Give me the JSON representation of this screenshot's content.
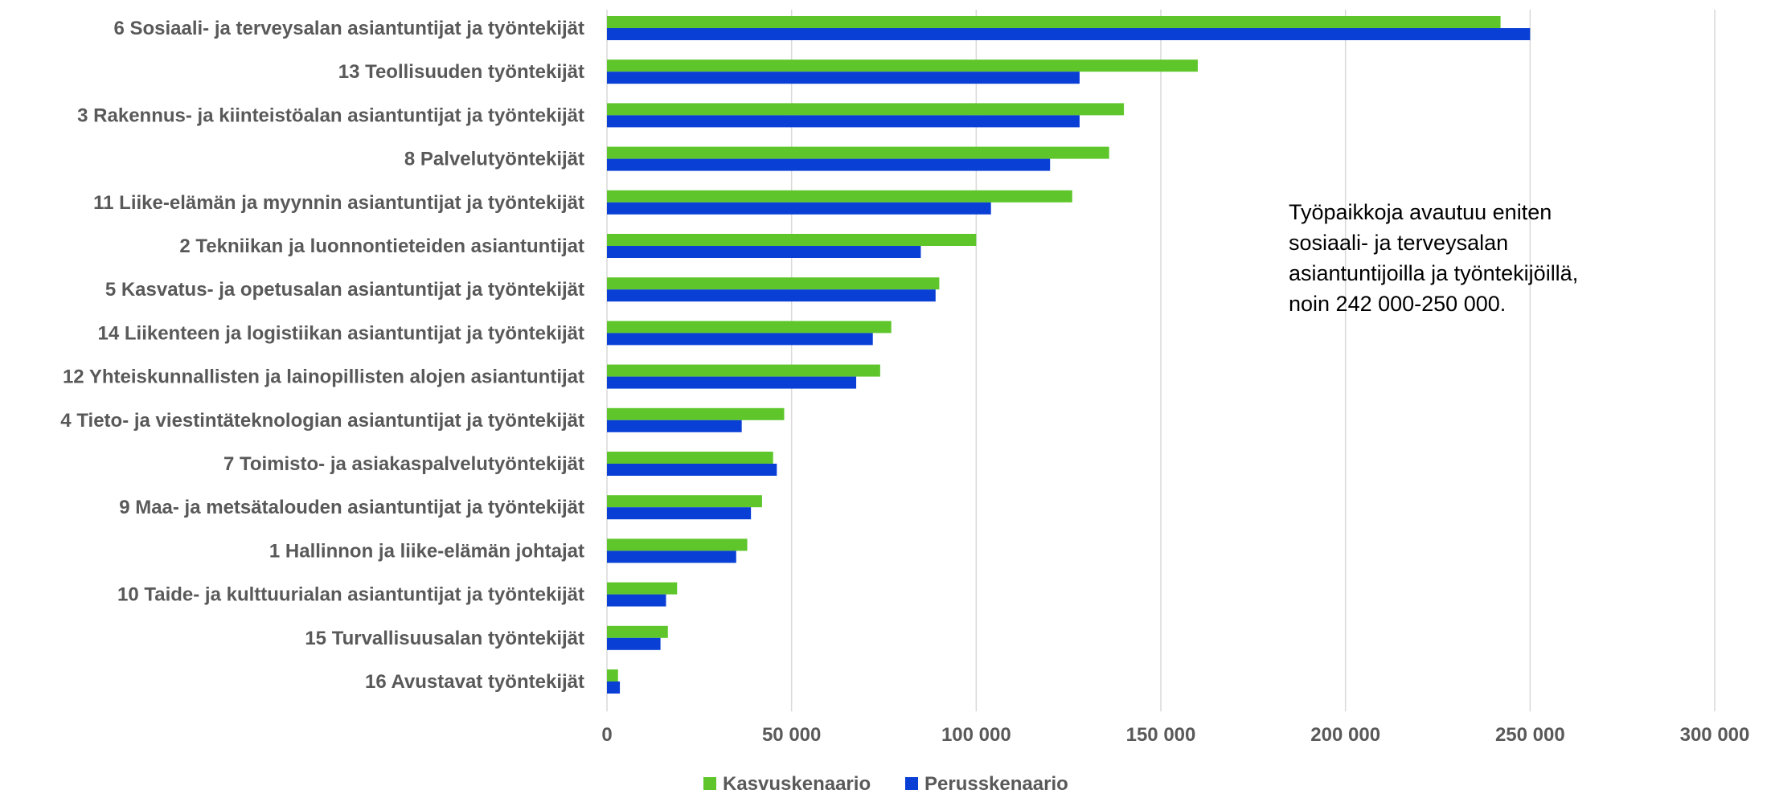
{
  "chart_data": {
    "type": "bar",
    "orientation": "horizontal",
    "title": "",
    "xlabel": "",
    "ylabel": "",
    "categories": [
      "6 Sosiaali- ja terveysalan asiantuntijat ja työntekijät",
      "13 Teollisuuden työntekijät",
      "3 Rakennus- ja kiinteistöalan asiantuntijat ja työntekijät",
      "8 Palvelutyöntekijät",
      "11 Liike-elämän ja myynnin asiantuntijat ja työntekijät",
      "2 Tekniikan ja luonnontieteiden asiantuntijat",
      "5 Kasvatus- ja opetusalan asiantuntijat ja työntekijät",
      "14 Liikenteen ja logistiikan asiantuntijat ja työntekijät",
      "12 Yhteiskunnallisten ja lainopillisten alojen asiantuntijat",
      "4 Tieto- ja viestintäteknologian asiantuntijat ja työntekijät",
      "7 Toimisto- ja asiakaspalvelutyöntekijät",
      "9 Maa- ja metsätalouden asiantuntijat ja työntekijät",
      "1 Hallinnon ja liike-elämän johtajat",
      "10 Taide- ja kulttuurialan asiantuntijat ja työntekijät",
      "15 Turvallisuusalan työntekijät",
      "16 Avustavat työntekijät"
    ],
    "series": [
      {
        "name": "Kasvuskenaario",
        "color": "#5ec62a",
        "values": [
          242000,
          160000,
          140000,
          136000,
          126000,
          100000,
          90000,
          77000,
          74000,
          48000,
          45000,
          42000,
          38000,
          19000,
          16500,
          3000
        ]
      },
      {
        "name": "Perusskenaario",
        "color": "#0a3fd6",
        "values": [
          250000,
          128000,
          128000,
          120000,
          104000,
          85000,
          89000,
          72000,
          67500,
          36500,
          46000,
          39000,
          35000,
          16000,
          14500,
          3500
        ]
      }
    ],
    "xlim": [
      0,
      300000
    ],
    "xticks": [
      0,
      50000,
      100000,
      150000,
      200000,
      250000,
      300000
    ],
    "xtick_labels": [
      "0",
      "50 000",
      "100 000",
      "150 000",
      "200 000",
      "250 000",
      "300 000"
    ],
    "grid": "vertical",
    "legend_position": "bottom",
    "annotation_lines": [
      "Työpaikkoja avautuu eniten",
      "sosiaali- ja terveysalan",
      "asiantuntijoilla ja työntekijöillä,",
      "noin 242 000-250 000."
    ]
  }
}
